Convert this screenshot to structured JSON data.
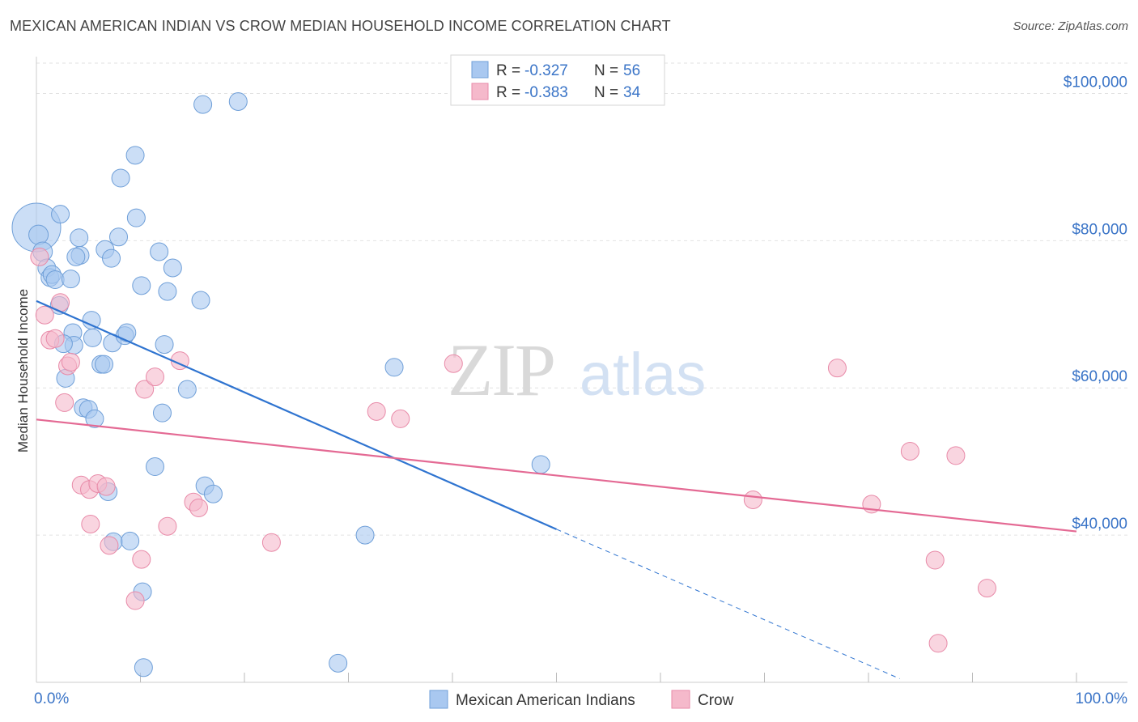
{
  "chart_data": {
    "type": "scatter",
    "title": "MEXICAN AMERICAN INDIAN VS CROW MEDIAN HOUSEHOLD INCOME CORRELATION CHART",
    "source": "Source: ZipAtlas.com",
    "xlabel": "",
    "ylabel": "Median Household Income",
    "x_tick_labels": [
      "0.0%",
      "100.0%"
    ],
    "y_tick_labels": [
      "$100,000",
      "$80,000",
      "$60,000",
      "$40,000"
    ],
    "y_ticks": [
      100000,
      80000,
      60000,
      40000
    ],
    "xlim": [
      0,
      100
    ],
    "ylim": [
      20000,
      105000
    ],
    "grid": true,
    "legend_position": "top-center",
    "watermark": "ZIPatlas",
    "colors": {
      "blue": "#a9c8f0",
      "blue_edge": "#6f9fd8",
      "blue_line": "#2f74d0",
      "pink": "#f5b9cb",
      "pink_edge": "#e88aa8",
      "pink_line": "#e46a94",
      "tick_text": "#3a74c7"
    },
    "legend": [
      {
        "r_label": "R = ",
        "r_value": "-0.327",
        "n_label": "N = ",
        "n_value": "56"
      },
      {
        "r_label": "R = ",
        "r_value": "-0.383",
        "n_label": "N = ",
        "n_value": "34"
      }
    ],
    "series": [
      {
        "name": "Mexican American Indians",
        "color": "#a9c8f0",
        "trend": {
          "x0": 0,
          "y0": 71800,
          "x1": 50.0,
          "y1": 40800,
          "dash_to_x": 83.0,
          "dash_to_y": 20500
        },
        "points": [
          [
            0.0,
            81800,
            30
          ],
          [
            0.2,
            80800,
            12
          ],
          [
            0.6,
            78500,
            12
          ],
          [
            1.0,
            76300,
            11
          ],
          [
            1.3,
            75000,
            11
          ],
          [
            1.5,
            75400,
            11
          ],
          [
            1.8,
            74700,
            11
          ],
          [
            2.2,
            71200,
            11
          ],
          [
            2.3,
            83600,
            11
          ],
          [
            3.3,
            74800,
            11
          ],
          [
            4.1,
            80400,
            11
          ],
          [
            4.2,
            78000,
            11
          ],
          [
            3.8,
            77800,
            11
          ],
          [
            3.5,
            67500,
            11
          ],
          [
            3.6,
            65800,
            11
          ],
          [
            2.6,
            66000,
            11
          ],
          [
            2.8,
            61300,
            11
          ],
          [
            4.5,
            57300,
            11
          ],
          [
            5.0,
            57100,
            11
          ],
          [
            5.4,
            66800,
            11
          ],
          [
            5.3,
            69200,
            11
          ],
          [
            5.6,
            55800,
            11
          ],
          [
            6.2,
            63200,
            11
          ],
          [
            6.5,
            63200,
            11
          ],
          [
            6.6,
            78800,
            11
          ],
          [
            6.9,
            45900,
            11
          ],
          [
            7.3,
            66100,
            11
          ],
          [
            7.2,
            77600,
            11
          ],
          [
            7.4,
            39100,
            11
          ],
          [
            7.9,
            80500,
            11
          ],
          [
            8.1,
            88500,
            11
          ],
          [
            8.5,
            67100,
            11
          ],
          [
            8.7,
            67500,
            11
          ],
          [
            9.0,
            39200,
            11
          ],
          [
            9.5,
            91600,
            11
          ],
          [
            9.6,
            83100,
            11
          ],
          [
            10.1,
            73900,
            11
          ],
          [
            10.2,
            32300,
            11
          ],
          [
            10.3,
            22000,
            11
          ],
          [
            11.4,
            49300,
            11
          ],
          [
            11.8,
            78500,
            11
          ],
          [
            12.1,
            56600,
            11
          ],
          [
            12.3,
            65900,
            11
          ],
          [
            12.6,
            73100,
            11
          ],
          [
            13.1,
            76300,
            11
          ],
          [
            14.5,
            59800,
            11
          ],
          [
            15.8,
            71900,
            11
          ],
          [
            16.0,
            98500,
            11
          ],
          [
            16.2,
            46700,
            11
          ],
          [
            17.0,
            45600,
            11
          ],
          [
            19.4,
            98900,
            11
          ],
          [
            29.0,
            22600,
            11
          ],
          [
            31.6,
            40000,
            11
          ],
          [
            34.4,
            62800,
            11
          ],
          [
            48.5,
            49600,
            11
          ],
          [
            13.0,
            56600,
            0
          ]
        ]
      },
      {
        "name": "Crow",
        "color": "#f5b9cb",
        "trend": {
          "x0": 0,
          "y0": 55700,
          "x1": 100,
          "y1": 40500
        },
        "points": [
          [
            0.3,
            77800,
            11
          ],
          [
            0.8,
            69900,
            11
          ],
          [
            1.3,
            66500,
            11
          ],
          [
            1.8,
            66700,
            11
          ],
          [
            2.3,
            71600,
            11
          ],
          [
            2.7,
            58000,
            11
          ],
          [
            3.0,
            63000,
            11
          ],
          [
            3.3,
            63500,
            11
          ],
          [
            4.3,
            46800,
            11
          ],
          [
            5.1,
            46200,
            11
          ],
          [
            5.2,
            41500,
            11
          ],
          [
            5.9,
            47000,
            11
          ],
          [
            6.7,
            46600,
            11
          ],
          [
            7.0,
            38600,
            11
          ],
          [
            9.5,
            31100,
            11
          ],
          [
            10.1,
            36700,
            11
          ],
          [
            10.4,
            59800,
            11
          ],
          [
            11.4,
            61500,
            11
          ],
          [
            12.6,
            41200,
            11
          ],
          [
            13.8,
            63700,
            11
          ],
          [
            15.1,
            44500,
            11
          ],
          [
            15.6,
            43700,
            11
          ],
          [
            22.6,
            39000,
            11
          ],
          [
            32.7,
            56800,
            11
          ],
          [
            35.0,
            55800,
            11
          ],
          [
            40.1,
            63300,
            11
          ],
          [
            68.9,
            44800,
            11
          ],
          [
            77.0,
            62700,
            11
          ],
          [
            80.3,
            44200,
            11
          ],
          [
            84.0,
            51400,
            11
          ],
          [
            86.4,
            36600,
            11
          ],
          [
            86.7,
            25300,
            11
          ],
          [
            88.4,
            50800,
            11
          ],
          [
            91.4,
            32800,
            11
          ]
        ]
      }
    ]
  }
}
